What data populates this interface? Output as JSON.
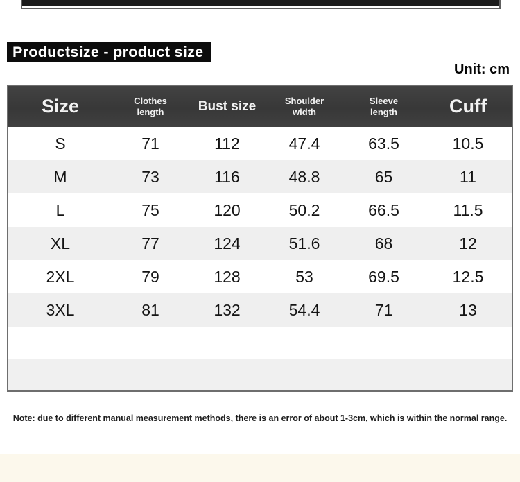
{
  "page": {
    "banner_title": "Productsize - product size",
    "unit_label": "Unit: cm",
    "note": "Note: due to different manual measurement methods, there is an error of about 1-3cm, which is within the normal range."
  },
  "chart_data": {
    "type": "table",
    "title": "Productsize - product size",
    "unit": "cm",
    "columns": [
      "Size",
      "Clothes length",
      "Bust size",
      "Shoulder width",
      "Sleeve length",
      "Cuff"
    ],
    "rows": [
      {
        "cells": [
          "S",
          "71",
          "112",
          "47.4",
          "63.5",
          "10.5"
        ]
      },
      {
        "cells": [
          "M",
          "73",
          "116",
          "48.8",
          "65",
          "11"
        ]
      },
      {
        "cells": [
          "L",
          "75",
          "120",
          "50.2",
          "66.5",
          "11.5"
        ]
      },
      {
        "cells": [
          "XL",
          "77",
          "124",
          "51.6",
          "68",
          "12"
        ]
      },
      {
        "cells": [
          "2XL",
          "79",
          "128",
          "53",
          "69.5",
          "12.5"
        ]
      },
      {
        "cells": [
          "3XL",
          "81",
          "132",
          "54.4",
          "71",
          "13"
        ]
      }
    ]
  },
  "colors": {
    "header_bg": "#3a3a3a",
    "header_text": "#f2f2f2",
    "row_stripe": "#efefef",
    "banner_bg": "#0c0c0c",
    "table_border": "#6e6e6e",
    "bottom_strip": "#fcf8ec"
  }
}
